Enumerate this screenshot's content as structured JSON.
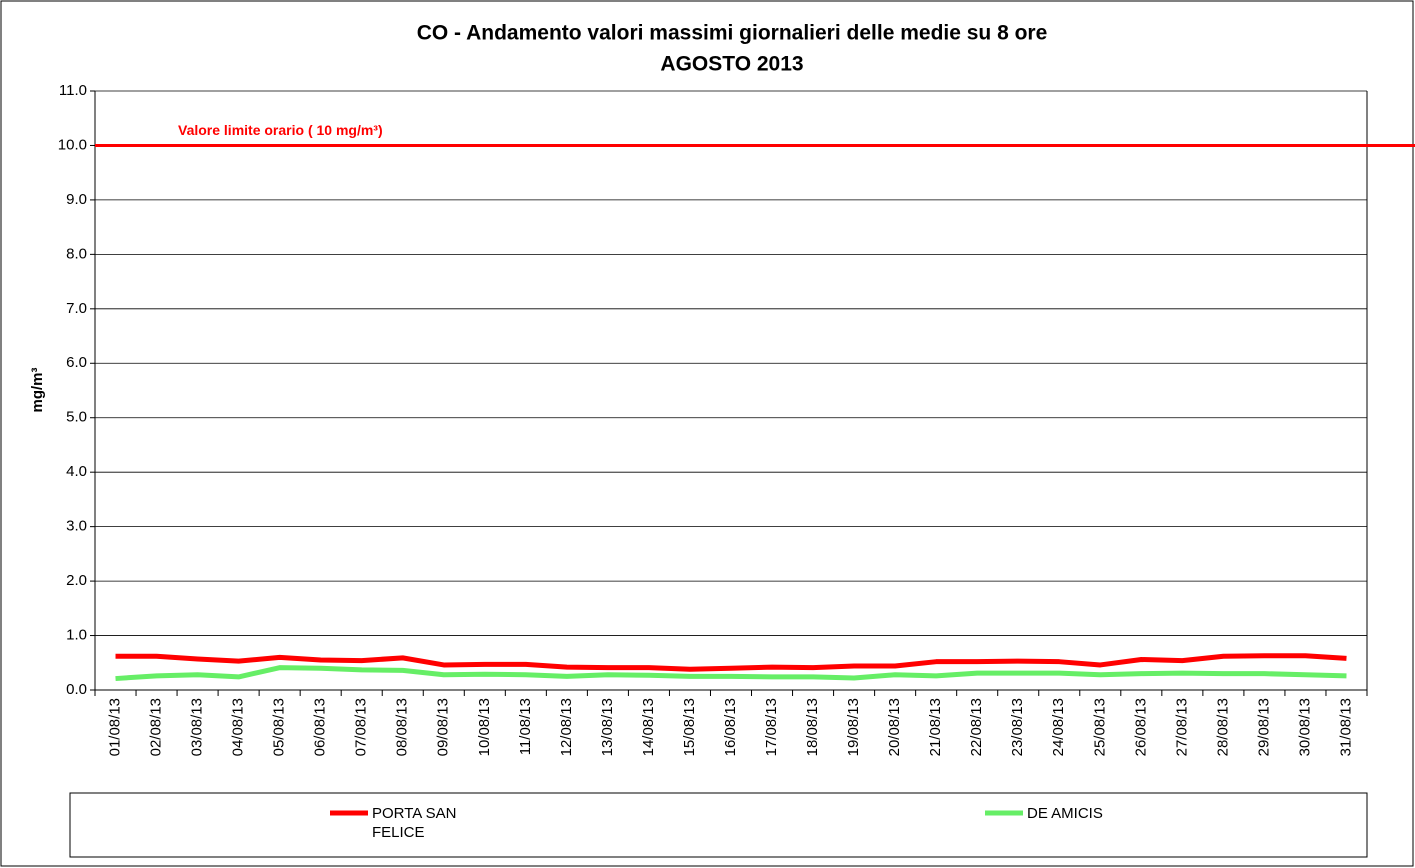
{
  "chart_data": {
    "type": "line",
    "title": "CO - Andamento valori massimi giornalieri delle medie su 8 ore",
    "subtitle": "AGOSTO 2013",
    "y_label": "mg/m³",
    "categories": [
      "01/08/13",
      "02/08/13",
      "03/08/13",
      "04/08/13",
      "05/08/13",
      "06/08/13",
      "07/08/13",
      "08/08/13",
      "09/08/13",
      "10/08/13",
      "11/08/13",
      "12/08/13",
      "13/08/13",
      "14/08/13",
      "15/08/13",
      "16/08/13",
      "17/08/13",
      "18/08/13",
      "19/08/13",
      "20/08/13",
      "21/08/13",
      "22/08/13",
      "23/08/13",
      "24/08/13",
      "25/08/13",
      "26/08/13",
      "27/08/13",
      "28/08/13",
      "29/08/13",
      "30/08/13",
      "31/08/13"
    ],
    "series": [
      {
        "name": "PORTA SAN FELICE",
        "color": "#ff0000",
        "values": [
          0.62,
          0.62,
          0.57,
          0.53,
          0.6,
          0.55,
          0.54,
          0.59,
          0.46,
          0.47,
          0.47,
          0.42,
          0.41,
          0.41,
          0.38,
          0.4,
          0.42,
          0.41,
          0.44,
          0.44,
          0.52,
          0.52,
          0.53,
          0.52,
          0.46,
          0.56,
          0.54,
          0.62,
          0.63,
          0.63,
          0.58
        ]
      },
      {
        "name": "DE AMICIS",
        "color": "#66ee66",
        "values": [
          0.21,
          0.26,
          0.28,
          0.24,
          0.41,
          0.4,
          0.37,
          0.36,
          0.28,
          0.29,
          0.28,
          0.25,
          0.28,
          0.27,
          0.25,
          0.25,
          0.24,
          0.24,
          0.22,
          0.28,
          0.26,
          0.31,
          0.31,
          0.31,
          0.28,
          0.3,
          0.31,
          0.3,
          0.3,
          0.28,
          0.26
        ]
      }
    ],
    "hlines": [
      {
        "value": 10,
        "label": "Valore limite orario ( 10 mg/m³)",
        "color": "#ff0000"
      }
    ],
    "ylim": [
      0,
      11
    ],
    "yticks": [
      {
        "value": 0,
        "label": "0.0"
      },
      {
        "value": 1,
        "label": "1.0"
      },
      {
        "value": 2,
        "label": "2.0"
      },
      {
        "value": 3,
        "label": "3.0"
      },
      {
        "value": 4,
        "label": "4.0"
      },
      {
        "value": 5,
        "label": "5.0"
      },
      {
        "value": 6,
        "label": "6.0"
      },
      {
        "value": 7,
        "label": "7.0"
      },
      {
        "value": 8,
        "label": "8.0"
      },
      {
        "value": 9,
        "label": "9.0"
      },
      {
        "value": 10,
        "label": "10.0"
      },
      {
        "value": 11,
        "label": "11.0"
      }
    ],
    "grid": true
  }
}
